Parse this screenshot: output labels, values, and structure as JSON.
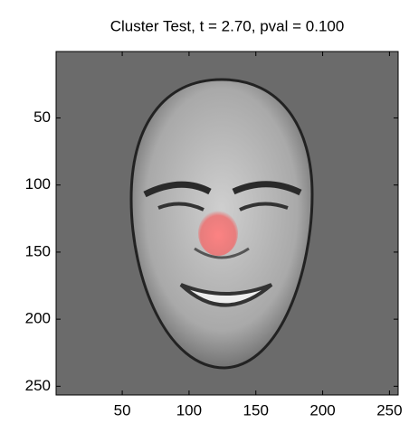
{
  "chart_data": {
    "type": "image",
    "title": "Cluster Test, t = 2.70, pval = 0.100",
    "xlim": [
      0.5,
      256.5
    ],
    "ylim": [
      0.5,
      256.5
    ],
    "y_reversed": true,
    "xticks": [
      50,
      100,
      150,
      200,
      250
    ],
    "yticks": [
      50,
      100,
      150,
      200,
      250
    ],
    "background": "#6b6b6b"
  }
}
